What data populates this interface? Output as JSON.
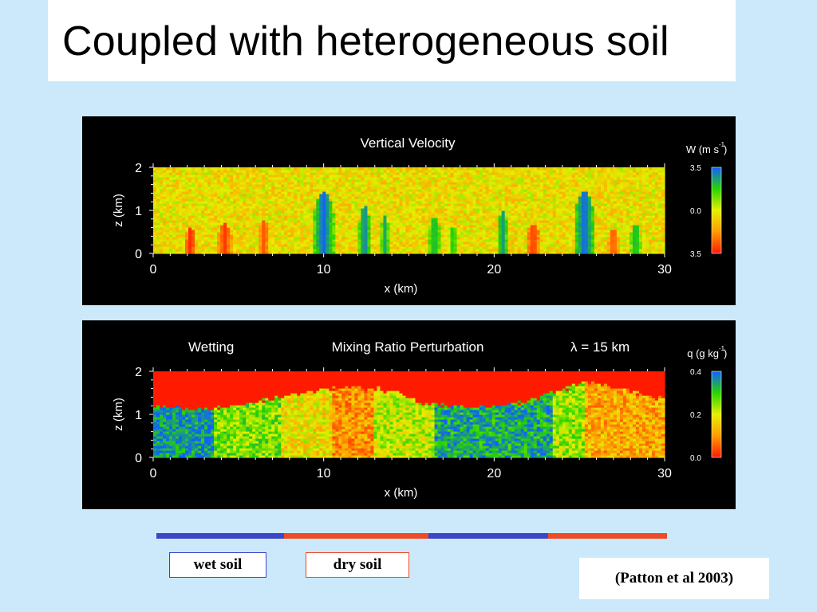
{
  "slide": {
    "title": "Coupled with heterogeneous soil",
    "legend": {
      "wet_label": "wet soil",
      "dry_label": "dry soil"
    },
    "citation": "(Patton et al 2003)",
    "soil_strip": {
      "segments": [
        {
          "type": "wet",
          "from_km": 0,
          "to_km": 7.5
        },
        {
          "type": "dry",
          "from_km": 7.5,
          "to_km": 16
        },
        {
          "type": "wet",
          "from_km": 16,
          "to_km": 23
        },
        {
          "type": "dry",
          "from_km": 23,
          "to_km": 30
        }
      ],
      "colors": {
        "wet": "#3b47c6",
        "dry": "#ee4a27"
      }
    }
  },
  "chart_data": [
    {
      "type": "heatmap",
      "title": "Vertical Velocity",
      "left_label": "",
      "right_label": "",
      "xlabel": "x (km)",
      "ylabel": "z (km)",
      "xlim": [
        0,
        30
      ],
      "ylim": [
        0,
        2
      ],
      "x_ticks": [
        "0",
        "10",
        "20",
        "30"
      ],
      "y_ticks": [
        "0",
        "1",
        "2"
      ],
      "colorbar": {
        "label": "W (m s",
        "superscript": "-1",
        "label_end": ")",
        "ticks": [
          "3.5",
          "0.0",
          "3.5"
        ]
      },
      "colormap": [
        "#ff1a00",
        "#ff9a00",
        "#e6f000",
        "#27d400",
        "#1060ff"
      ],
      "background_value": 0.45,
      "features": [
        {
          "x_km": 10.0,
          "z_top_km": 1.45,
          "width_km": 1.2,
          "level": 1.0
        },
        {
          "x_km": 12.4,
          "z_top_km": 1.1,
          "width_km": 0.7,
          "level": 0.95
        },
        {
          "x_km": 13.6,
          "z_top_km": 0.9,
          "width_km": 0.5,
          "level": 0.85
        },
        {
          "x_km": 16.5,
          "z_top_km": 0.85,
          "width_km": 0.7,
          "level": 0.85
        },
        {
          "x_km": 17.6,
          "z_top_km": 0.65,
          "width_km": 0.5,
          "level": 0.8
        },
        {
          "x_km": 20.5,
          "z_top_km": 1.0,
          "width_km": 0.6,
          "level": 0.9
        },
        {
          "x_km": 25.3,
          "z_top_km": 1.45,
          "width_km": 1.2,
          "level": 1.0
        },
        {
          "x_km": 28.3,
          "z_top_km": 0.7,
          "width_km": 0.6,
          "level": 0.85
        },
        {
          "x_km": 2.2,
          "z_top_km": 0.6,
          "width_km": 0.6,
          "level": 0.0
        },
        {
          "x_km": 4.2,
          "z_top_km": 0.7,
          "width_km": 0.8,
          "level": 0.05
        },
        {
          "x_km": 6.5,
          "z_top_km": 0.8,
          "width_km": 0.6,
          "level": 0.1
        },
        {
          "x_km": 22.3,
          "z_top_km": 0.7,
          "width_km": 0.8,
          "level": 0.05
        },
        {
          "x_km": 27.0,
          "z_top_km": 0.6,
          "width_km": 0.6,
          "level": 0.1
        }
      ]
    },
    {
      "type": "heatmap",
      "title": "Mixing Ratio Perturbation",
      "left_label": "Wetting",
      "right_label": "λ = 15 km",
      "xlabel": "x (km)",
      "ylabel": "z (km)",
      "xlim": [
        0,
        30
      ],
      "ylim": [
        0,
        2
      ],
      "x_ticks": [
        "0",
        "10",
        "20",
        "30"
      ],
      "y_ticks": [
        "0",
        "1",
        "2"
      ],
      "colorbar": {
        "label": "q (g kg",
        "superscript": "-1",
        "label_end": ")",
        "ticks": [
          "0.4",
          "0.2",
          "0.0"
        ]
      },
      "colormap": [
        "#ff1a00",
        "#ff9a00",
        "#e6f000",
        "#27d400",
        "#1060ff"
      ],
      "background_value": 0.0,
      "boundary_layer_top_km": [
        [
          0,
          1.2
        ],
        [
          2,
          1.15
        ],
        [
          4,
          1.15
        ],
        [
          6,
          1.3
        ],
        [
          8,
          1.45
        ],
        [
          10,
          1.6
        ],
        [
          12,
          1.65
        ],
        [
          14,
          1.55
        ],
        [
          16,
          1.25
        ],
        [
          18,
          1.2
        ],
        [
          20,
          1.2
        ],
        [
          22,
          1.3
        ],
        [
          24,
          1.6
        ],
        [
          25.5,
          1.75
        ],
        [
          27,
          1.65
        ],
        [
          30,
          1.35
        ]
      ],
      "regions": [
        {
          "from_km": 0,
          "to_km": 3.5,
          "level": 0.9
        },
        {
          "from_km": 3.5,
          "to_km": 7.5,
          "level": 0.65
        },
        {
          "from_km": 7.5,
          "to_km": 10.5,
          "level": 0.45
        },
        {
          "from_km": 10.5,
          "to_km": 13,
          "level": 0.25
        },
        {
          "from_km": 13,
          "to_km": 16.5,
          "level": 0.55
        },
        {
          "from_km": 16.5,
          "to_km": 23.5,
          "level": 0.85
        },
        {
          "from_km": 23.5,
          "to_km": 25.3,
          "level": 0.6
        },
        {
          "from_km": 25.3,
          "to_km": 30,
          "level": 0.3
        }
      ]
    }
  ]
}
